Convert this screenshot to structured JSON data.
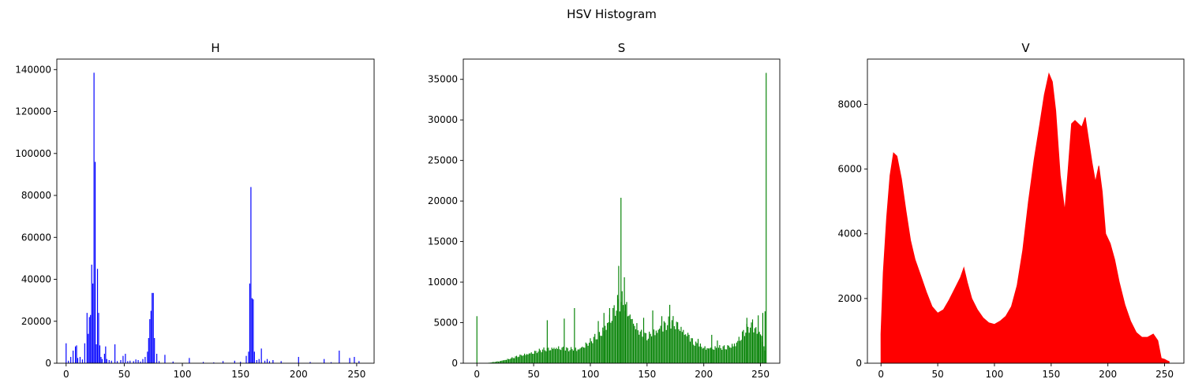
{
  "figure": {
    "title": "HSV Histogram"
  },
  "chart_data": [
    {
      "type": "bar",
      "title": "H",
      "color": "#0000ff",
      "xlim": [
        -8,
        265
      ],
      "ylim": [
        0,
        145000
      ],
      "xticks": [
        0,
        50,
        100,
        150,
        200,
        250
      ],
      "yticks": [
        0,
        20000,
        40000,
        60000,
        80000,
        100000,
        120000,
        140000
      ],
      "peaks": [
        [
          0,
          9500
        ],
        [
          2,
          1200
        ],
        [
          4,
          3000
        ],
        [
          6,
          6000
        ],
        [
          8,
          8000
        ],
        [
          9,
          8500
        ],
        [
          10,
          2500
        ],
        [
          12,
          3000
        ],
        [
          14,
          1800
        ],
        [
          16,
          9500
        ],
        [
          18,
          24000
        ],
        [
          19,
          14000
        ],
        [
          20,
          22000
        ],
        [
          21,
          23000
        ],
        [
          22,
          47000
        ],
        [
          23,
          38000
        ],
        [
          24,
          138500
        ],
        [
          25,
          96000
        ],
        [
          26,
          9000
        ],
        [
          27,
          45000
        ],
        [
          28,
          24000
        ],
        [
          29,
          8500
        ],
        [
          30,
          3000
        ],
        [
          31,
          2000
        ],
        [
          33,
          4500
        ],
        [
          34,
          8000
        ],
        [
          35,
          2000
        ],
        [
          37,
          1500
        ],
        [
          39,
          1200
        ],
        [
          42,
          9000
        ],
        [
          44,
          1000
        ],
        [
          47,
          1500
        ],
        [
          49,
          3500
        ],
        [
          51,
          4500
        ],
        [
          53,
          1000
        ],
        [
          55,
          1200
        ],
        [
          58,
          1000
        ],
        [
          60,
          1800
        ],
        [
          62,
          1500
        ],
        [
          64,
          800
        ],
        [
          66,
          2000
        ],
        [
          68,
          3000
        ],
        [
          70,
          5500
        ],
        [
          71,
          12000
        ],
        [
          72,
          21000
        ],
        [
          73,
          25000
        ],
        [
          74,
          33500
        ],
        [
          75,
          33500
        ],
        [
          76,
          12000
        ],
        [
          78,
          4500
        ],
        [
          80,
          1000
        ],
        [
          85,
          4000
        ],
        [
          92,
          800
        ],
        [
          106,
          2500
        ],
        [
          118,
          600
        ],
        [
          127,
          400
        ],
        [
          135,
          1000
        ],
        [
          145,
          1200
        ],
        [
          150,
          700
        ],
        [
          155,
          3500
        ],
        [
          157,
          5500
        ],
        [
          158,
          38000
        ],
        [
          159,
          84000
        ],
        [
          160,
          31000
        ],
        [
          161,
          30500
        ],
        [
          162,
          5500
        ],
        [
          164,
          1500
        ],
        [
          166,
          2000
        ],
        [
          168,
          7000
        ],
        [
          171,
          1200
        ],
        [
          173,
          2000
        ],
        [
          175,
          1000
        ],
        [
          178,
          1500
        ],
        [
          185,
          1000
        ],
        [
          200,
          3000
        ],
        [
          210,
          600
        ],
        [
          222,
          2000
        ],
        [
          228,
          500
        ],
        [
          235,
          6000
        ],
        [
          244,
          2500
        ],
        [
          248,
          3000
        ],
        [
          252,
          1000
        ]
      ]
    },
    {
      "type": "bar",
      "title": "S",
      "color": "#008000",
      "xlim": [
        -12,
        267
      ],
      "ylim": [
        0,
        37500
      ],
      "xticks": [
        0,
        50,
        100,
        150,
        200,
        250
      ],
      "yticks": [
        0,
        5000,
        10000,
        15000,
        20000,
        25000,
        30000,
        35000
      ],
      "spikes": [
        [
          0,
          5800
        ],
        [
          62,
          5300
        ],
        [
          77,
          5500
        ],
        [
          86,
          6800
        ],
        [
          107,
          5200
        ],
        [
          112,
          6200
        ],
        [
          117,
          6800
        ],
        [
          125,
          12000
        ],
        [
          127,
          20400
        ],
        [
          130,
          10600
        ],
        [
          147,
          5600
        ],
        [
          155,
          6500
        ],
        [
          163,
          5800
        ],
        [
          170,
          7200
        ],
        [
          187,
          3500
        ],
        [
          195,
          3000
        ],
        [
          207,
          3500
        ],
        [
          212,
          2800
        ],
        [
          238,
          5600
        ],
        [
          243,
          5400
        ],
        [
          248,
          5900
        ],
        [
          252,
          6200
        ],
        [
          254,
          6400
        ],
        [
          255,
          35800
        ]
      ],
      "profile": [
        [
          10,
          50
        ],
        [
          20,
          300
        ],
        [
          30,
          700
        ],
        [
          40,
          1200
        ],
        [
          50,
          1600
        ],
        [
          60,
          2000
        ],
        [
          70,
          2300
        ],
        [
          80,
          2000
        ],
        [
          90,
          2100
        ],
        [
          100,
          3100
        ],
        [
          110,
          4600
        ],
        [
          118,
          6800
        ],
        [
          125,
          8800
        ],
        [
          128,
          9000
        ],
        [
          132,
          8200
        ],
        [
          138,
          6000
        ],
        [
          145,
          4200
        ],
        [
          150,
          3800
        ],
        [
          158,
          4800
        ],
        [
          165,
          5500
        ],
        [
          172,
          6000
        ],
        [
          178,
          5500
        ],
        [
          185,
          4200
        ],
        [
          192,
          2800
        ],
        [
          200,
          2300
        ],
        [
          210,
          2200
        ],
        [
          220,
          2300
        ],
        [
          228,
          2900
        ],
        [
          235,
          4400
        ],
        [
          240,
          5200
        ],
        [
          245,
          5000
        ],
        [
          250,
          4500
        ],
        [
          254,
          2000
        ]
      ]
    },
    {
      "type": "area",
      "title": "V",
      "color": "#ff0000",
      "xlim": [
        -12,
        267
      ],
      "ylim": [
        0,
        9400
      ],
      "xticks": [
        0,
        50,
        100,
        150,
        200,
        250
      ],
      "yticks": [
        0,
        2000,
        4000,
        6000,
        8000
      ],
      "profile": [
        [
          0,
          900
        ],
        [
          2,
          2800
        ],
        [
          5,
          4500
        ],
        [
          8,
          5800
        ],
        [
          11,
          6500
        ],
        [
          14,
          6400
        ],
        [
          18,
          5700
        ],
        [
          22,
          4700
        ],
        [
          26,
          3800
        ],
        [
          30,
          3200
        ],
        [
          35,
          2700
        ],
        [
          40,
          2200
        ],
        [
          45,
          1750
        ],
        [
          50,
          1550
        ],
        [
          55,
          1650
        ],
        [
          60,
          1950
        ],
        [
          65,
          2300
        ],
        [
          70,
          2650
        ],
        [
          73,
          2950
        ],
        [
          76,
          2500
        ],
        [
          80,
          2000
        ],
        [
          85,
          1650
        ],
        [
          90,
          1400
        ],
        [
          95,
          1250
        ],
        [
          100,
          1200
        ],
        [
          105,
          1300
        ],
        [
          110,
          1450
        ],
        [
          115,
          1750
        ],
        [
          120,
          2400
        ],
        [
          125,
          3500
        ],
        [
          130,
          5000
        ],
        [
          135,
          6300
        ],
        [
          140,
          7400
        ],
        [
          144,
          8300
        ],
        [
          148,
          8950
        ],
        [
          151,
          8700
        ],
        [
          154,
          7800
        ],
        [
          158,
          5800
        ],
        [
          162,
          4700
        ],
        [
          165,
          6000
        ],
        [
          168,
          7400
        ],
        [
          171,
          7500
        ],
        [
          174,
          7400
        ],
        [
          177,
          7300
        ],
        [
          180,
          7600
        ],
        [
          183,
          6900
        ],
        [
          186,
          6200
        ],
        [
          189,
          5600
        ],
        [
          192,
          6100
        ],
        [
          195,
          5300
        ],
        [
          198,
          4000
        ],
        [
          202,
          3700
        ],
        [
          206,
          3200
        ],
        [
          210,
          2500
        ],
        [
          215,
          1800
        ],
        [
          220,
          1300
        ],
        [
          225,
          950
        ],
        [
          230,
          800
        ],
        [
          235,
          800
        ],
        [
          240,
          900
        ],
        [
          244,
          700
        ],
        [
          247,
          150
        ],
        [
          250,
          120
        ],
        [
          252,
          80
        ],
        [
          254,
          50
        ]
      ]
    }
  ]
}
